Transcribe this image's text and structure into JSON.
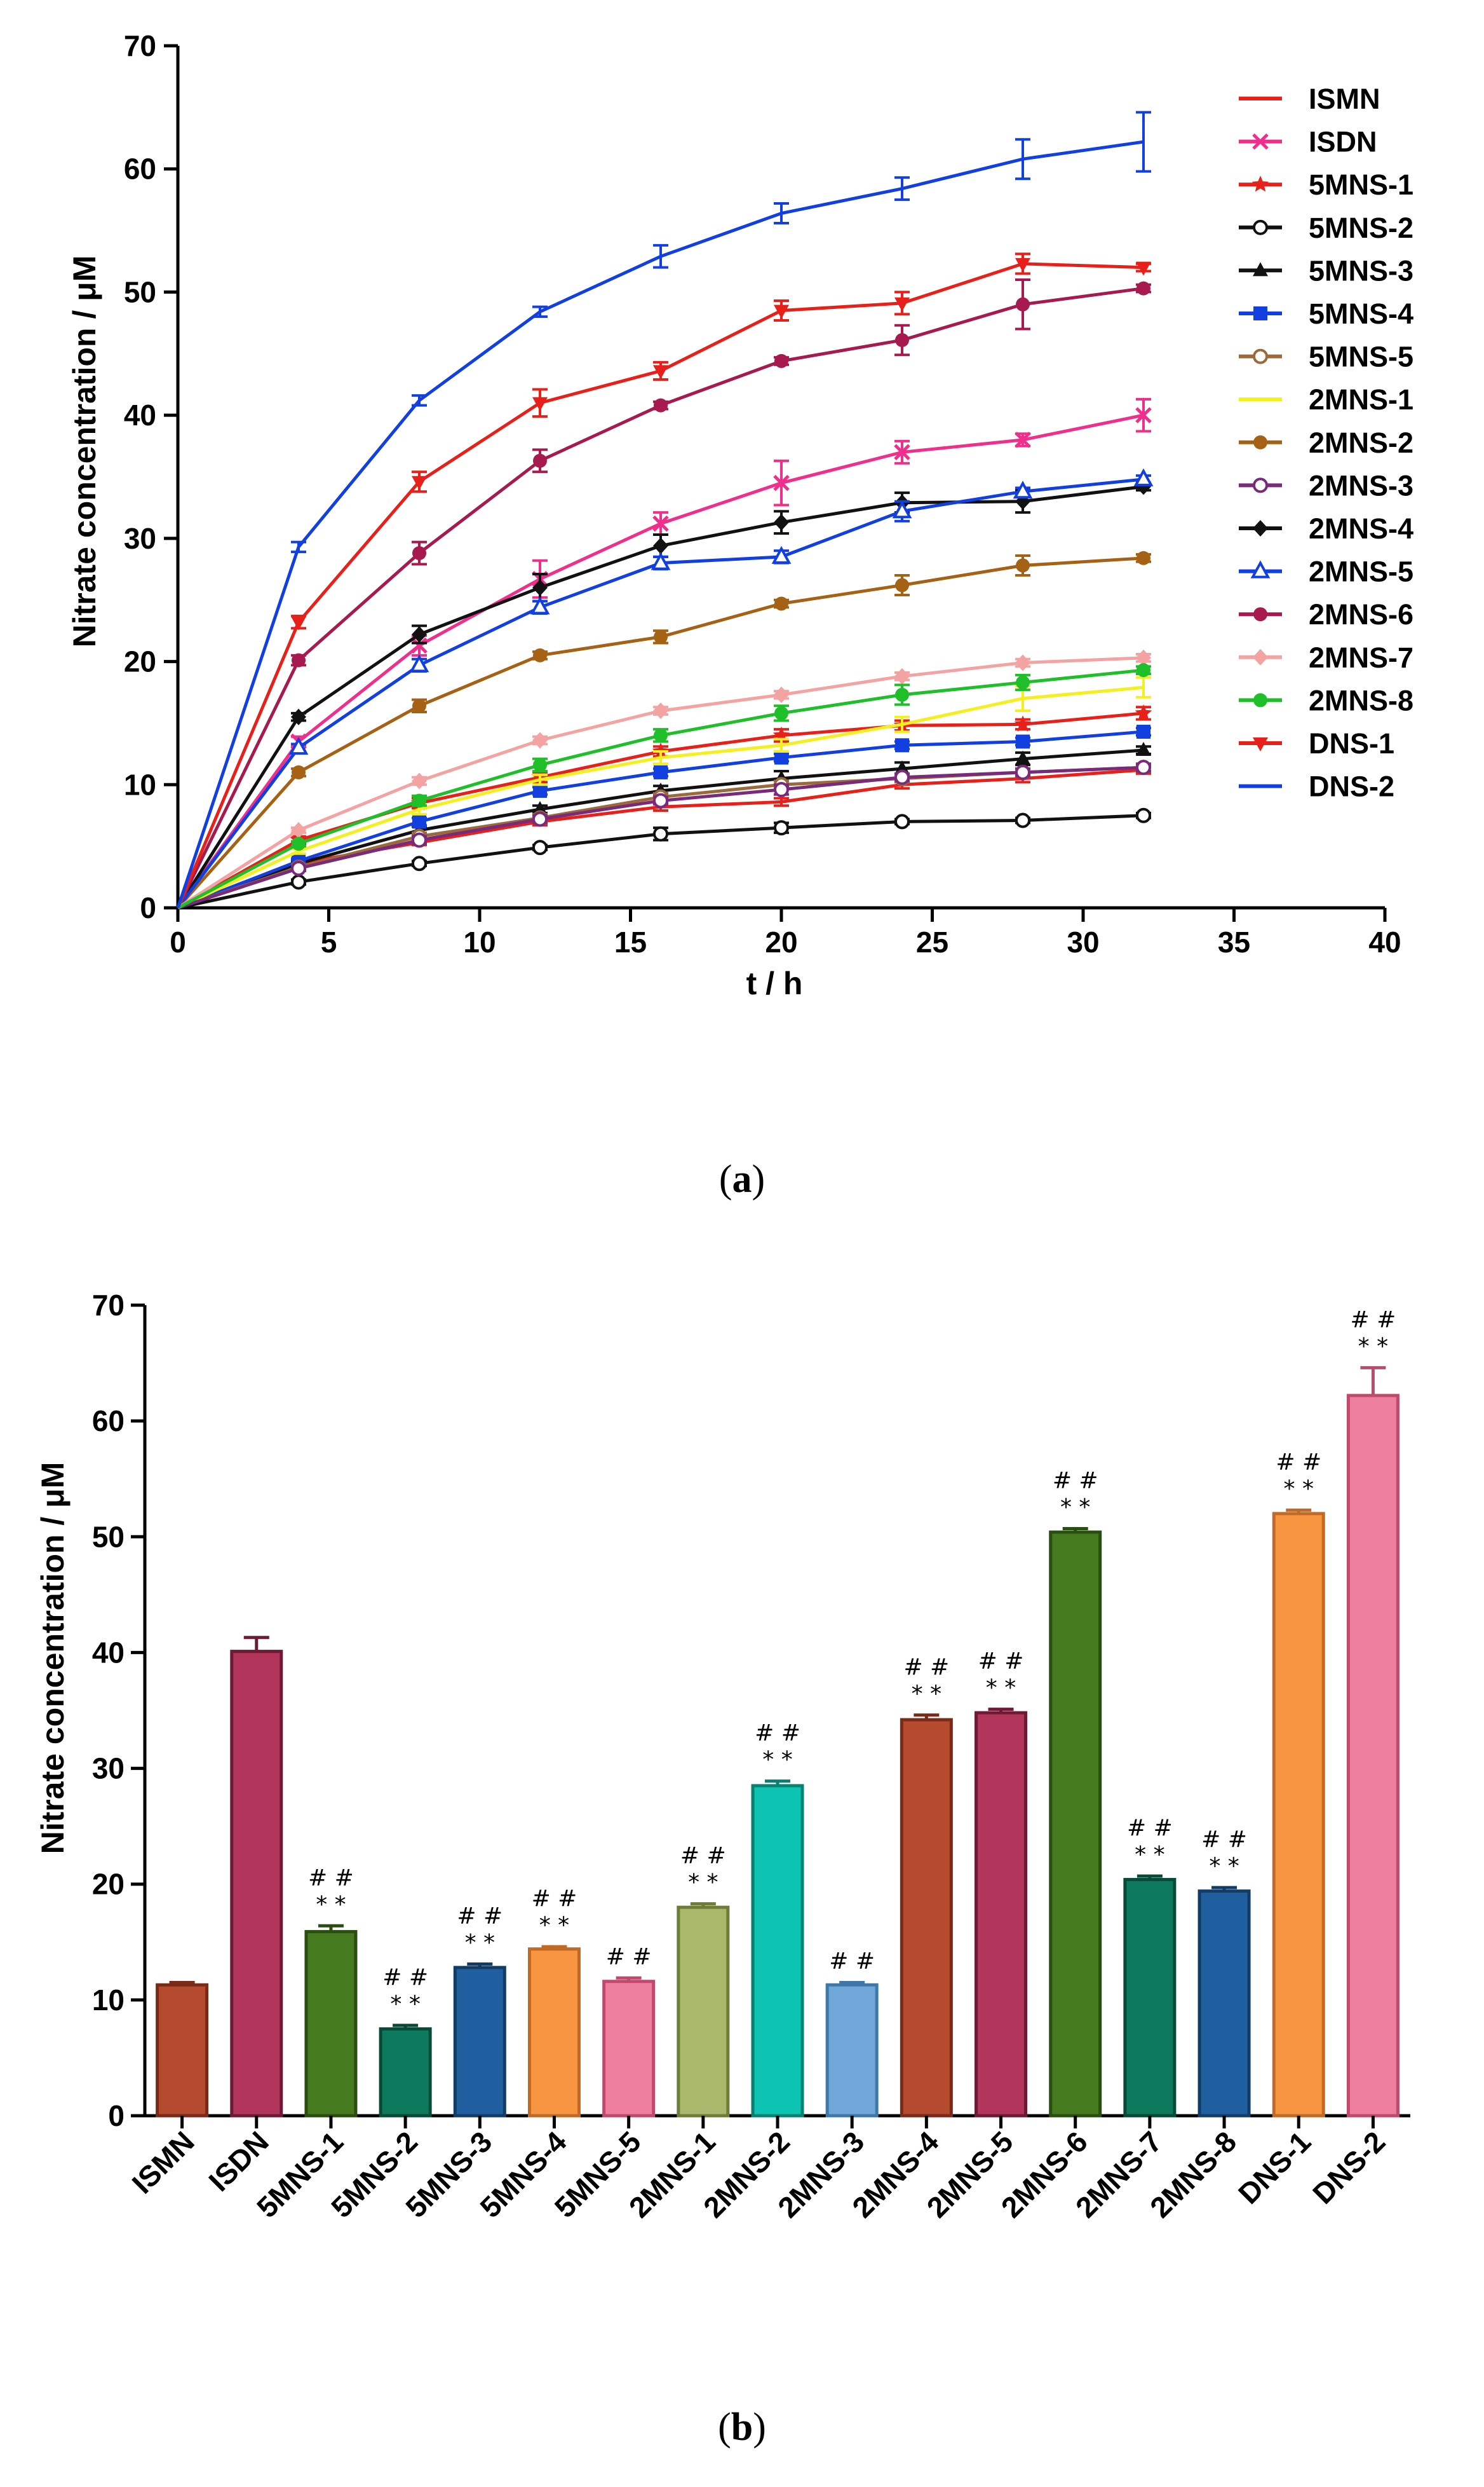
{
  "chart_data": [
    {
      "type": "line",
      "caption": "a",
      "xlabel": "t / h",
      "ylabel": "Nitrate concentration / μM",
      "xlim": [
        0,
        40
      ],
      "ylim": [
        0,
        70
      ],
      "xticks": [
        0,
        5,
        10,
        15,
        20,
        25,
        30,
        35,
        40
      ],
      "yticks": [
        0,
        10,
        20,
        30,
        40,
        50,
        60,
        70
      ],
      "x": [
        0,
        4,
        8,
        12,
        16,
        20,
        24,
        28,
        32
      ],
      "legend_position": "right",
      "series": [
        {
          "name": "ISMN",
          "color": "#e8201a",
          "marker": "none",
          "values": [
            0,
            3.6,
            5.3,
            7.0,
            8.2,
            8.6,
            10.0,
            10.5,
            11.2
          ],
          "errors": [
            0,
            0.2,
            0.2,
            0.3,
            0.3,
            0.3,
            0.3,
            0.3,
            0.3
          ]
        },
        {
          "name": "ISDN",
          "color": "#ef2f8c",
          "marker": "x",
          "values": [
            0,
            13.5,
            21.3,
            26.7,
            31.2,
            34.5,
            37.0,
            38.0,
            40.0
          ],
          "errors": [
            0,
            0.4,
            0.8,
            1.5,
            0.9,
            1.8,
            0.9,
            0.5,
            1.3
          ]
        },
        {
          "name": "5MNS-1",
          "color": "#e8201a",
          "marker": "star",
          "values": [
            0,
            5.5,
            8.5,
            10.6,
            12.7,
            14.0,
            14.8,
            14.9,
            15.8
          ],
          "errors": [
            0,
            0.3,
            0.4,
            0.4,
            0.4,
            0.5,
            0.4,
            0.4,
            0.5
          ]
        },
        {
          "name": "5MNS-2",
          "color": "#111111",
          "marker": "open-circle",
          "values": [
            0,
            2.1,
            3.6,
            4.9,
            6.0,
            6.5,
            7.0,
            7.1,
            7.5
          ],
          "errors": [
            0,
            0.2,
            0.2,
            0.2,
            0.5,
            0.4,
            0.2,
            0.2,
            0.2
          ]
        },
        {
          "name": "5MNS-3",
          "color": "#111111",
          "marker": "triangle",
          "values": [
            0,
            3.6,
            6.3,
            8.0,
            9.5,
            10.5,
            11.3,
            12.1,
            12.8
          ],
          "errors": [
            0,
            0.2,
            0.3,
            0.3,
            0.4,
            0.6,
            0.5,
            0.5,
            0.3
          ]
        },
        {
          "name": "5MNS-4",
          "color": "#1240e0",
          "marker": "square",
          "values": [
            0,
            3.8,
            7.0,
            9.5,
            11.0,
            12.2,
            13.2,
            13.5,
            14.3
          ],
          "errors": [
            0,
            0.2,
            0.3,
            0.3,
            0.3,
            0.3,
            0.3,
            0.3,
            0.3
          ]
        },
        {
          "name": "5MNS-5",
          "color": "#9a6a3a",
          "marker": "open-circle",
          "values": [
            0,
            3.3,
            5.8,
            7.3,
            9.0,
            10.0,
            10.5,
            11.0,
            11.4
          ],
          "errors": [
            0,
            0.2,
            0.3,
            0.3,
            0.3,
            0.3,
            0.3,
            0.3,
            0.3
          ]
        },
        {
          "name": "2MNS-1",
          "color": "#f4ef1f",
          "marker": "none",
          "values": [
            0,
            4.6,
            8.0,
            10.4,
            12.2,
            13.2,
            14.9,
            17.0,
            17.9
          ],
          "errors": [
            0,
            0.2,
            0.4,
            0.4,
            0.5,
            0.5,
            0.6,
            1.0,
            0.8
          ]
        },
        {
          "name": "2MNS-2",
          "color": "#a66214",
          "marker": "dot",
          "values": [
            0,
            11.0,
            16.4,
            20.5,
            22.0,
            24.7,
            26.2,
            27.8,
            28.4
          ],
          "errors": [
            0,
            0.3,
            0.5,
            0.3,
            0.5,
            0.3,
            0.8,
            0.8,
            0.3
          ]
        },
        {
          "name": "2MNS-3",
          "color": "#7a2a7a",
          "marker": "open-circle",
          "values": [
            0,
            3.2,
            5.5,
            7.2,
            8.7,
            9.6,
            10.6,
            11.0,
            11.4
          ],
          "errors": [
            0,
            0.2,
            0.3,
            0.3,
            0.3,
            0.4,
            0.3,
            0.3,
            0.3
          ]
        },
        {
          "name": "2MNS-4",
          "color": "#111111",
          "marker": "diamond",
          "values": [
            0,
            15.5,
            22.2,
            26.0,
            29.4,
            31.3,
            32.9,
            33.0,
            34.2
          ],
          "errors": [
            0,
            0.3,
            0.7,
            1.1,
            0.9,
            0.9,
            0.8,
            0.9,
            0.3
          ]
        },
        {
          "name": "2MNS-5",
          "color": "#1240e0",
          "marker": "open-triangle",
          "values": [
            0,
            13.0,
            19.7,
            24.4,
            28.0,
            28.5,
            32.2,
            33.8,
            34.8
          ],
          "errors": [
            0,
            0.3,
            0.5,
            0.5,
            0.5,
            0.5,
            0.8,
            0.3,
            0.3
          ]
        },
        {
          "name": "2MNS-6",
          "color": "#a61a50",
          "marker": "dot",
          "values": [
            0,
            20.1,
            28.8,
            36.3,
            40.8,
            44.4,
            46.1,
            49.0,
            50.3
          ],
          "errors": [
            0,
            0.4,
            0.9,
            0.9,
            0.3,
            0.3,
            1.2,
            2.0,
            0.3
          ]
        },
        {
          "name": "2MNS-7",
          "color": "#f4a3a3",
          "marker": "diamond",
          "values": [
            0,
            6.3,
            10.3,
            13.6,
            16.0,
            17.3,
            18.8,
            19.9,
            20.3
          ],
          "errors": [
            0,
            0.2,
            0.3,
            0.3,
            0.3,
            0.3,
            0.3,
            0.3,
            0.3
          ]
        },
        {
          "name": "2MNS-8",
          "color": "#1fbf2a",
          "marker": "dot",
          "values": [
            0,
            5.2,
            8.7,
            11.6,
            14.0,
            15.8,
            17.3,
            18.3,
            19.3
          ],
          "errors": [
            0,
            0.2,
            0.4,
            0.5,
            0.5,
            0.6,
            0.8,
            0.6,
            0.3
          ]
        },
        {
          "name": "DNS-1",
          "color": "#e8201a",
          "marker": "triangle-down",
          "values": [
            0,
            23.2,
            34.6,
            41.0,
            43.6,
            48.5,
            49.1,
            52.3,
            52.0
          ],
          "errors": [
            0,
            0.5,
            0.8,
            1.1,
            0.7,
            0.8,
            0.9,
            0.8,
            0.3
          ]
        },
        {
          "name": "DNS-2",
          "color": "#1240e0",
          "marker": "none",
          "values": [
            0,
            29.3,
            41.2,
            48.4,
            52.9,
            56.4,
            58.4,
            60.8,
            62.2
          ],
          "errors": [
            0,
            0.4,
            0.4,
            0.4,
            0.9,
            0.8,
            0.9,
            1.6,
            2.4
          ]
        }
      ]
    },
    {
      "type": "bar",
      "caption": "b",
      "xlabel": "",
      "ylabel": "Nitrate concentration / μM",
      "ylim": [
        0,
        70
      ],
      "yticks": [
        0,
        10,
        20,
        30,
        40,
        50,
        60,
        70
      ],
      "categories": [
        "ISMN",
        "ISDN",
        "5MNS-1",
        "5MNS-2",
        "5MNS-3",
        "5MNS-4",
        "5MNS-5",
        "2MNS-1",
        "2MNS-2",
        "2MNS-3",
        "2MNS-4",
        "2MNS-5",
        "2MNS-6",
        "2MNS-7",
        "2MNS-8",
        "DNS-1",
        "DNS-2"
      ],
      "values": [
        11.3,
        40.1,
        15.9,
        7.5,
        12.8,
        14.4,
        11.6,
        18.0,
        28.5,
        11.3,
        34.2,
        34.8,
        50.4,
        20.4,
        19.4,
        52.0,
        62.2
      ],
      "errors": [
        0.2,
        1.2,
        0.5,
        0.3,
        0.3,
        0.2,
        0.3,
        0.3,
        0.4,
        0.2,
        0.4,
        0.3,
        0.3,
        0.3,
        0.3,
        0.3,
        2.4
      ],
      "colors": [
        "#b44a2e",
        "#b2365c",
        "#467a1e",
        "#0d7a5e",
        "#1f5f9f",
        "#f79541",
        "#ef7f9e",
        "#a9b86a",
        "#0dc4b2",
        "#6fa8d8",
        "#b44a2e",
        "#b2365c",
        "#467a1e",
        "#0d7a5e",
        "#1f5f9f",
        "#f79541",
        "#ef7f9e"
      ],
      "edge_colors": [
        "#7a2a18",
        "#6e1a36",
        "#2a4e10",
        "#074a38",
        "#123c66",
        "#c06a26",
        "#c04a6e",
        "#6e7c3a",
        "#078272",
        "#3f78a8",
        "#7a2a18",
        "#6e1a36",
        "#2a4e10",
        "#074a38",
        "#123c66",
        "#c06a26",
        "#c04a6e"
      ],
      "annotations_hash": [
        "",
        "",
        "# #",
        "# #",
        "# #",
        "# #",
        "# #",
        "# #",
        "# #",
        "# #",
        "# #",
        "# #",
        "# #",
        "# #",
        "# #",
        "# #",
        "# #"
      ],
      "annotations_star": [
        "",
        "",
        "* *",
        "* *",
        "* *",
        "* *",
        "",
        "* *",
        "* *",
        "",
        "* *",
        "* *",
        "* *",
        "* *",
        "* *",
        "* *",
        "* *"
      ]
    }
  ]
}
